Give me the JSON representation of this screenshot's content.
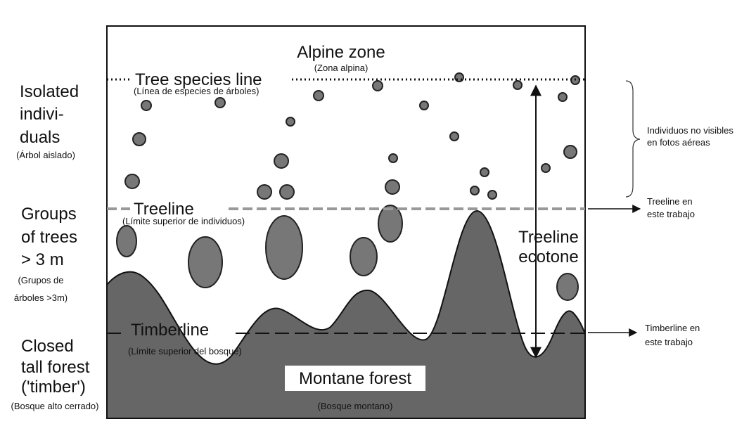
{
  "diagram": {
    "zones": {
      "alpine": {
        "label": "Alpine zone",
        "translation": "(Zona alpina)"
      },
      "tree_species_line": {
        "label": "Tree species line",
        "translation": "(Línea de especies de árboles)"
      },
      "treeline": {
        "label": "Treeline",
        "translation": "(Límite superior de individuos)"
      },
      "timberline": {
        "label": "Timberline",
        "translation": "(Límite superior del bosque)"
      },
      "montane_forest": {
        "label": "Montane forest",
        "translation": "(Bosque montano)"
      },
      "ecotone": {
        "lines": [
          "Treeline",
          "ecotone"
        ]
      }
    },
    "left_labels": [
      {
        "lines": [
          "Isolated",
          "indivi-",
          "duals"
        ],
        "translation": [
          "(Árbol aislado)"
        ]
      },
      {
        "lines": [
          "Groups",
          "of trees",
          "> 3 m"
        ],
        "translation": [
          "(Grupos de",
          "árboles >3m)"
        ]
      },
      {
        "lines": [
          "Closed",
          "tall forest",
          "('timber')"
        ],
        "translation": [
          "(Bosque alto cerrado)"
        ]
      }
    ],
    "right_notes": [
      {
        "lines": [
          "Individuos no visibles",
          "en fotos aéreas"
        ]
      },
      {
        "lines": [
          "Treeline en",
          "este trabajo"
        ]
      },
      {
        "lines": [
          "Timberline en",
          "este trabajo"
        ]
      }
    ]
  }
}
